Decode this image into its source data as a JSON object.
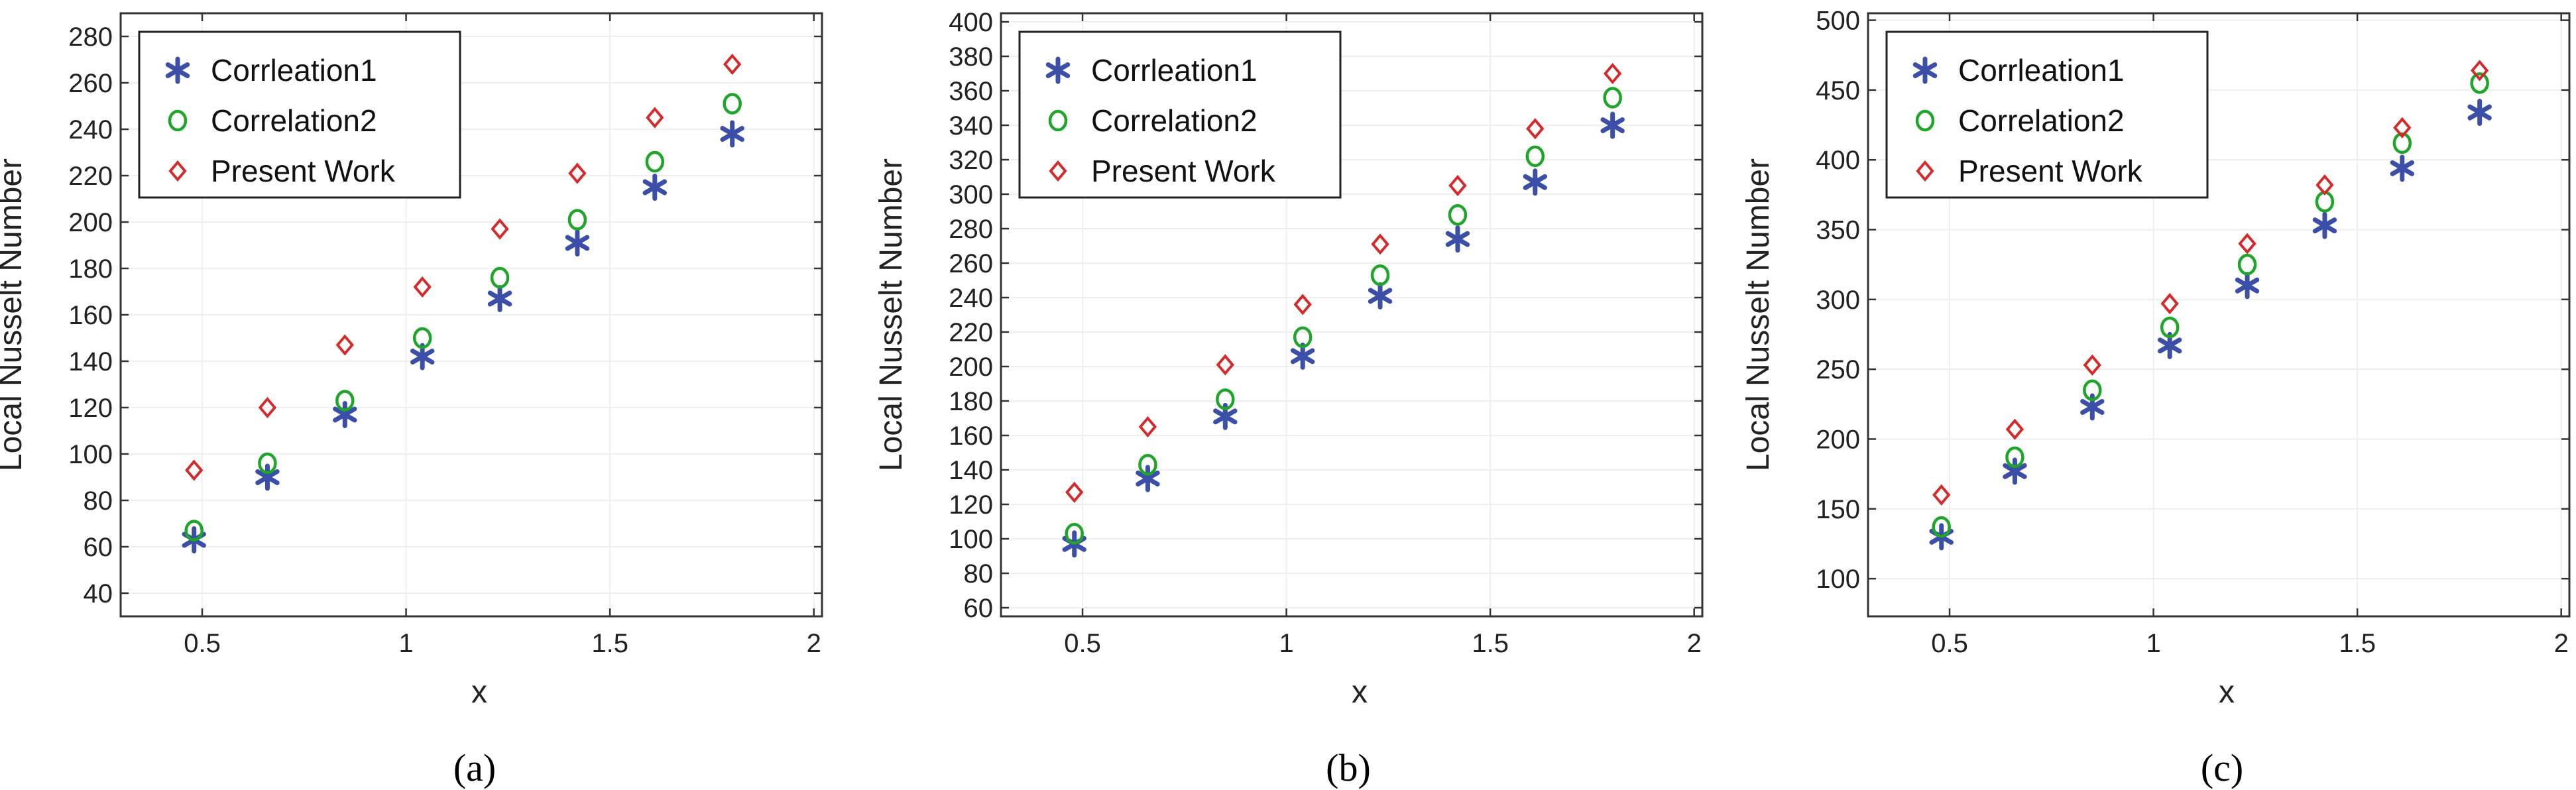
{
  "colors": {
    "correlation1": "#3b4fa8",
    "correlation2": "#1fa52a",
    "present_work": "#d42a2a"
  },
  "markers": {
    "correlation1": "asterisk",
    "correlation2": "circle",
    "present_work": "diamond"
  },
  "chart_data": [
    {
      "type": "scatter",
      "caption": "(a)",
      "xlabel": "x",
      "ylabel": "Local Nusselt Number",
      "xlim": [
        0.3,
        2.02
      ],
      "ylim": [
        30,
        290
      ],
      "xticks": [
        0.5,
        1,
        1.5,
        2
      ],
      "xtick_labels": [
        "0.5",
        "1",
        "1.5",
        "2"
      ],
      "yticks": [
        40,
        60,
        80,
        100,
        120,
        140,
        160,
        180,
        200,
        220,
        240,
        260,
        280
      ],
      "ytick_labels": [
        "40",
        "60",
        "80",
        "100",
        "120",
        "140",
        "160",
        "180",
        "200",
        "220",
        "240",
        "260",
        "280"
      ],
      "grid": true,
      "legend": "top-left",
      "x": [
        0.48,
        0.66,
        0.85,
        1.04,
        1.23,
        1.42,
        1.61,
        1.8
      ],
      "series": [
        {
          "name": "Corrleation1",
          "key": "correlation1",
          "values": [
            63,
            90,
            117,
            142,
            167,
            191,
            215,
            238
          ]
        },
        {
          "name": "Correlation2",
          "key": "correlation2",
          "values": [
            67,
            96,
            123,
            150,
            176,
            201,
            226,
            251
          ]
        },
        {
          "name": "Present Work",
          "key": "present_work",
          "values": [
            93,
            120,
            147,
            172,
            197,
            221,
            245,
            268
          ]
        }
      ]
    },
    {
      "type": "scatter",
      "caption": "(b)",
      "xlabel": "x",
      "ylabel": "Local Nusselt Number",
      "xlim": [
        0.3,
        2.02
      ],
      "ylim": [
        55,
        405
      ],
      "xticks": [
        0.5,
        1,
        1.5,
        2
      ],
      "xtick_labels": [
        "0.5",
        "1",
        "1.5",
        "2"
      ],
      "yticks": [
        60,
        80,
        100,
        120,
        140,
        160,
        180,
        200,
        220,
        240,
        260,
        280,
        300,
        320,
        340,
        360,
        380,
        400
      ],
      "ytick_labels": [
        "60",
        "80",
        "100",
        "120",
        "140",
        "160",
        "180",
        "200",
        "220",
        "240",
        "260",
        "280",
        "300",
        "320",
        "340",
        "360",
        "380",
        "400"
      ],
      "grid": true,
      "legend": "top-left",
      "x": [
        0.48,
        0.66,
        0.85,
        1.04,
        1.23,
        1.42,
        1.61,
        1.8
      ],
      "series": [
        {
          "name": "Corrleation1",
          "key": "correlation1",
          "values": [
            97,
            135,
            171,
            206,
            241,
            274,
            307,
            340
          ]
        },
        {
          "name": "Correlation2",
          "key": "correlation2",
          "values": [
            103,
            143,
            181,
            217,
            253,
            288,
            322,
            356
          ]
        },
        {
          "name": "Present Work",
          "key": "present_work",
          "values": [
            127,
            165,
            201,
            236,
            271,
            305,
            338,
            370
          ]
        }
      ]
    },
    {
      "type": "scatter",
      "caption": "(c)",
      "xlabel": "x",
      "ylabel": "Local Nusselt Number",
      "xlim": [
        0.3,
        2.02
      ],
      "ylim": [
        73,
        505
      ],
      "xticks": [
        0.5,
        1,
        1.5,
        2
      ],
      "xtick_labels": [
        "0.5",
        "1",
        "1.5",
        "2"
      ],
      "yticks": [
        100,
        150,
        200,
        250,
        300,
        350,
        400,
        450,
        500
      ],
      "ytick_labels": [
        "100",
        "150",
        "200",
        "250",
        "300",
        "350",
        "400",
        "450",
        "500"
      ],
      "grid": true,
      "legend": "top-left",
      "x": [
        0.48,
        0.66,
        0.85,
        1.04,
        1.23,
        1.42,
        1.61,
        1.8
      ],
      "series": [
        {
          "name": "Corrleation1",
          "key": "correlation1",
          "values": [
            130,
            177,
            223,
            267,
            310,
            353,
            394,
            434
          ]
        },
        {
          "name": "Correlation2",
          "key": "correlation2",
          "values": [
            137,
            187,
            235,
            280,
            325,
            370,
            412,
            455
          ]
        },
        {
          "name": "Present Work",
          "key": "present_work",
          "values": [
            160,
            207,
            253,
            297,
            340,
            382,
            423,
            464
          ]
        }
      ]
    }
  ]
}
